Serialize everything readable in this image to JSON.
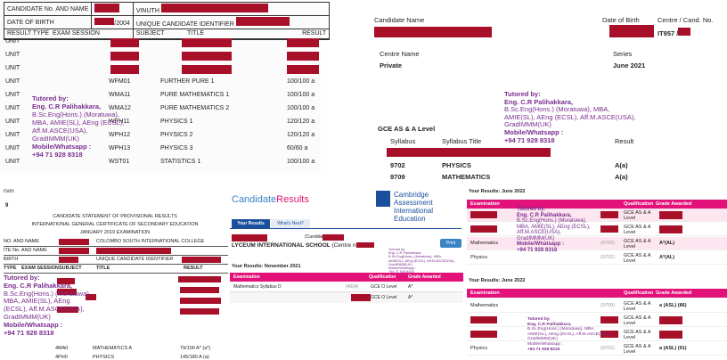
{
  "panel1": {
    "header_row1": {
      "candidate_no": "CANDIDATE No. AND NAME",
      "vinuth": "VINUTH"
    },
    "header_row2": {
      "dob_label": "DATE OF BIRTH",
      "dob_value": "/2004",
      "uci_label": "UNIQUE CANDIDATE IDENTIFIER"
    },
    "columns": {
      "type": "RESULT TYPE",
      "session": "EXAM SESSION",
      "subject": "SUBJECT",
      "title": "TITLE",
      "result": "RESULT"
    },
    "rows": [
      {
        "type": "UNIT",
        "subject": "",
        "title": "",
        "result": ""
      },
      {
        "type": "UNIT",
        "subject": "",
        "title": "",
        "result": ""
      },
      {
        "type": "UNIT",
        "subject": "",
        "title": "",
        "result": ""
      },
      {
        "type": "UNIT",
        "subject": "WFM01",
        "title": "FURTHER PURE 1",
        "result": "100/100 a"
      },
      {
        "type": "UNIT",
        "subject": "WMA11",
        "title": "PURE MATHEMATICS 1",
        "result": "100/100 a"
      },
      {
        "type": "UNIT",
        "subject": "WMA12",
        "title": "PURE MATHEMATICS 2",
        "result": "100/100 a"
      },
      {
        "type": "UNIT",
        "subject": "WPH11",
        "title": "PHYSICS 1",
        "result": "120/120 a"
      },
      {
        "type": "UNIT",
        "subject": "WPH12",
        "title": "PHYSICS 2",
        "result": "120/120 a"
      },
      {
        "type": "UNIT",
        "subject": "WPH13",
        "title": "PHYSICS 3",
        "result": "60/60 a"
      },
      {
        "type": "UNIT",
        "subject": "WST01",
        "title": "STATISTICS 1",
        "result": "100/100 a"
      }
    ],
    "tutor": [
      "Tutored by:",
      "Eng. C.R Palihakkara,",
      "B.Sc.Eng(Hons.) (Moratuwa),",
      "MBA, AMIE(SL), AEng (ECSL),",
      "Aff.M.ASCE(USA),",
      "GradIMMM(UK)",
      "Mobile/Whatsapp :",
      "+94 71 928 8318"
    ]
  },
  "panel2": {
    "candidate_name": "Candidate Name",
    "dob": "Date of Birth",
    "centre": "Centre / Cand. No.",
    "centre_code": "IT957 /",
    "centre_name_label": "Centre Name",
    "centre_name": "Private",
    "series_label": "Series",
    "series": "June 2021",
    "tutor": [
      "Tutored by:",
      "Eng. C.R Palihakkara,",
      "B.Sc.Eng(Hons.) (Moratuwa), MBA,",
      "AMIE(SL), AEng (ECSL), Aff.M.ASCE(USA),",
      "GradIMMM(UK)",
      "Mobile/Whatsapp :",
      "+94 71 928 8318"
    ],
    "level": "GCE AS & A Level",
    "syllabus": "Syllabus",
    "syllabus_title": "Syllabus Title",
    "result": "Result",
    "rows": [
      {
        "code": "9702",
        "title": "PHYSICS",
        "grade": "A(a)"
      },
      {
        "code": "9709",
        "title": "MATHEMATICS",
        "grade": "A(a)"
      }
    ]
  },
  "panel3": {
    "corner": "rson",
    "nine": "9",
    "title1": "CANDIDATE STATEMENT OF PROVISIONAL RESULTS",
    "title2": "INTERNATIONAL GENERAL CERTIFICATE OF SECONDARY EDUCATION",
    "title3": "JANUARY 2019 EXAMINATION",
    "row1": {
      "label": "NO. AND NAME",
      "value": "COLOMBO SOUTH INTERNATIONAL COLLEGE"
    },
    "row2": {
      "label": "ITE No. AND NAME"
    },
    "row3": {
      "label": "BIRTH",
      "value": "UNIQUE CANDIDATE IDENTIFIER"
    },
    "columns": {
      "type": "TYPE",
      "session": "EXAM SESSION",
      "subject": "SUBJECT",
      "title": "TITLE",
      "result": "RESULT"
    },
    "tutor": [
      "Tutored by:",
      "Eng. C.R Palihakkara,",
      "B.Sc.Eng(Hons.) (Moratuwa),",
      "MBA, AMIE(SL), AEng",
      "(ECSL), Aff.M.ASCE(USA),",
      "GradIMMM(UK)",
      "Mobile/Whatsapp :",
      "+94 71 928 8318"
    ],
    "rows": [
      {
        "subject": "4MA0",
        "title": "MATHEMATICS A",
        "result": "79/100 A* (a*)"
      },
      {
        "subject": "4PH0",
        "title": "PHYSICS",
        "result": "145/180 A (a)"
      }
    ]
  },
  "panel4": {
    "logo_part1": "Candidate",
    "logo_part2": "Results",
    "cambridge1": "Cambridge Assessment",
    "cambridge2": "International Education",
    "tab_results": "Your Results",
    "tab_next": "What's Next?",
    "school": "LYCEUM INTERNATIONAL SCHOOL",
    "centre": "(Centre no.",
    "candidate_paren": "(Candida",
    "print_btn": "Print",
    "results_heading": "Your Results: November 2021",
    "cols": {
      "exam": "Examination",
      "qual": "Qualification",
      "grade": "Grade Awarded"
    },
    "rows": [
      {
        "exam": "Mathematics Syllabus D",
        "code": "(4024)",
        "qual": "GCE O Level",
        "grade": "A*"
      },
      {
        "exam": "",
        "code": "",
        "qual": "GCE O Level",
        "grade": "A*"
      }
    ],
    "tutor_small": [
      "Tutored by:",
      "Eng. C.R Palihakkara,",
      "B.Sc.Eng(Hons.) (Moratuwa), MBA,",
      "AMIE(SL), AEng (ECSL), Aff.M.ASCE(USA),",
      "GradIMMM(UK)",
      "Mobile/Whatsapp :",
      "+94 71 928 8318"
    ]
  },
  "panel5": {
    "heading1": "Your Results: June 2022",
    "cols": {
      "exam": "Examination",
      "qual": "Qualification",
      "grade": "Grade Awarded"
    },
    "tutor": [
      "Tutored by:",
      "Eng. C.R Palihakkara,",
      "B.Sc.Eng(Hons.) (Moratuwa),",
      "MBA, AMIE(SL), AEng (ECSL),",
      "Aff.M.ASCE(USA),",
      "GradIMMM(UK)",
      "Mobile/Whatsapp :",
      "+94 71 928 8318"
    ],
    "rows1": [
      {
        "exam": "",
        "code": "",
        "qual": "GCE AS & A Level",
        "grade": ""
      },
      {
        "exam": "",
        "code": "",
        "qual": "GCE AS & A Level",
        "grade": ""
      },
      {
        "exam": "Mathematics",
        "code": "(9709)",
        "qual": "GCE AS & A Level",
        "grade": "A*(AL)"
      },
      {
        "exam": "Physics",
        "code": "(9702)",
        "qual": "GCE AS & A Level",
        "grade": "A*(AL)"
      }
    ],
    "heading2": "Your Results: June 2022",
    "rows2": [
      {
        "exam": "Mathematics",
        "code": "(9709)",
        "qual": "GCE AS & A Level",
        "grade": "a (ASL) (86)"
      },
      {
        "exam": "",
        "code": "",
        "qual": "GCE AS & A Level",
        "grade": ""
      },
      {
        "exam": "",
        "code": "",
        "qual": "GCE AS & A Level",
        "grade": ""
      },
      {
        "exam": "Physics",
        "code": "(9702)",
        "qual": "GCE AS & A Level",
        "grade": "a (ASL) (91)"
      }
    ],
    "tutor2": [
      "Tutored by:",
      "Eng. C.R Palihakkara,",
      "B.Sc.Eng(Hons.) (Moratuwa), MBA,",
      "AMIE(SL), AEng (ECSL), Aff.M.ASCE(USA),",
      "GradIMMM(UK)",
      "Mobile/Whatsapp :",
      "+94 71 928 8318"
    ]
  },
  "colors": {
    "redact": "#a8102a",
    "tutor": "#7a2d8f",
    "pink": "#e2127a",
    "pink_light": "#fde6ef",
    "cambridge_blue": "#1a4f9c"
  }
}
